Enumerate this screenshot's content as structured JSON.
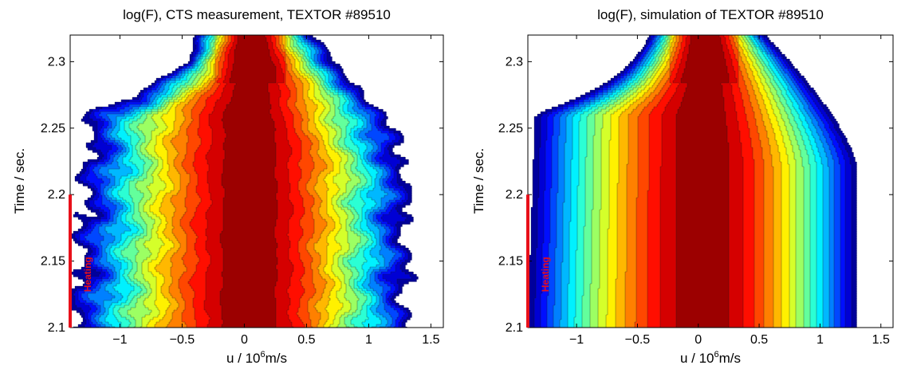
{
  "chart_data": [
    {
      "type": "contour",
      "title": "log(F), CTS measurement, TEXTOR #89510",
      "xlabel_base": "u / 10",
      "xlabel_exp": "6",
      "xlabel_unit": "m/s",
      "ylabel": "Time / sec.",
      "xlim": [
        -1.4,
        1.6
      ],
      "ylim": [
        2.1,
        2.32
      ],
      "xticks": [
        -1,
        -0.5,
        0,
        0.5,
        1,
        1.5
      ],
      "xtick_labels": [
        "−1",
        "−0.5",
        "0",
        "0.5",
        "1",
        "1.5"
      ],
      "yticks": [
        2.1,
        2.15,
        2.2,
        2.25,
        2.3
      ],
      "ytick_labels": [
        "2.1",
        "2.15",
        "2.2",
        "2.25",
        "2.3"
      ],
      "heating_label": "Heating",
      "heating_interval": [
        2.1,
        2.2
      ],
      "heating_color": "#e8101a",
      "colormap": "jet",
      "contour_levels": 18,
      "peak_velocity": 0.05,
      "noisy": true
    },
    {
      "type": "contour",
      "title": "log(F), simulation of TEXTOR #89510",
      "xlabel_base": "u / 10",
      "xlabel_exp": "6",
      "xlabel_unit": "m/s",
      "ylabel": "Time / sec.",
      "xlim": [
        -1.4,
        1.6
      ],
      "ylim": [
        2.1,
        2.32
      ],
      "xticks": [
        -1,
        -0.5,
        0,
        0.5,
        1,
        1.5
      ],
      "xtick_labels": [
        "−1",
        "−0.5",
        "0",
        "0.5",
        "1",
        "1.5"
      ],
      "yticks": [
        2.1,
        2.15,
        2.2,
        2.25,
        2.3
      ],
      "ytick_labels": [
        "2.1",
        "2.15",
        "2.2",
        "2.25",
        "2.3"
      ],
      "heating_label": "Heating",
      "heating_interval": [
        2.1,
        2.2
      ],
      "heating_color": "#e8101a",
      "colormap": "jet",
      "contour_levels": 18,
      "peak_velocity": 0.05,
      "noisy": false
    }
  ]
}
